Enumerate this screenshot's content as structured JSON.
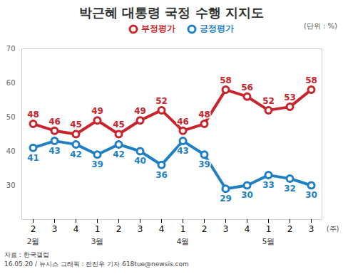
{
  "chart_data": {
    "type": "line",
    "title": "박근혜 대통령 국정 수행 지지도",
    "subtitle": "(단위 : %)",
    "categories": [
      "2",
      "3",
      "4",
      "1",
      "2",
      "3",
      "4",
      "1",
      "2",
      "3",
      "4",
      "1",
      "2",
      "3"
    ],
    "months": [
      "2월",
      "2월",
      "2월",
      "3월",
      "3월",
      "3월",
      "3월",
      "4월",
      "4월",
      "4월",
      "4월",
      "5월",
      "5월",
      "5월"
    ],
    "x_label": "(주)",
    "series": [
      {
        "name": "부정평가",
        "color": "#c8242b",
        "values": [
          48,
          46,
          45,
          49,
          45,
          49,
          52,
          46,
          48,
          58,
          56,
          52,
          53,
          58
        ]
      },
      {
        "name": "긍정평가",
        "color": "#1f7fc4",
        "values": [
          41,
          43,
          42,
          39,
          42,
          40,
          36,
          43,
          39,
          29,
          30,
          33,
          32,
          30
        ]
      }
    ],
    "ylim": [
      20,
      70
    ],
    "yticks": [
      30,
      40,
      50,
      60,
      70
    ],
    "grid": true,
    "data_labels": true,
    "legend": "top",
    "marker": "circle",
    "source": "자료 : 한국갤럽",
    "credit": "16.05.20 / 뉴시스 그래픽 : 전진우 기자 618tue@newsis.com"
  }
}
